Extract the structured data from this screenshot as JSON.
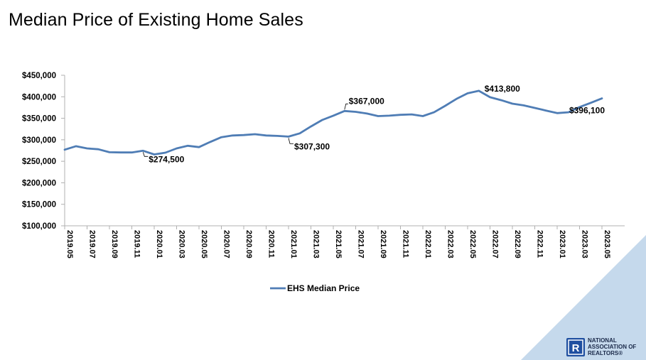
{
  "page": {
    "title": "Median Price of Existing Home Sales"
  },
  "colors": {
    "series_line": "#4f7db5",
    "corner_triangle": "#c5d9ec",
    "axis": "#b0b0b0",
    "logo_blue": "#1f4fa0"
  },
  "logo": {
    "icon": "realtor-r-icon",
    "lines": [
      "NATIONAL",
      "ASSOCIATION OF",
      "REALTORS®"
    ]
  },
  "chart_data": {
    "type": "line",
    "title": "Median Price of Existing Home Sales",
    "xlabel": "",
    "ylabel": "",
    "ylim": [
      100000,
      450000
    ],
    "yticks": [
      100000,
      150000,
      200000,
      250000,
      300000,
      350000,
      400000,
      450000
    ],
    "ytick_labels": [
      "$100,000",
      "$150,000",
      "$200,000",
      "$250,000",
      "$300,000",
      "$350,000",
      "$400,000",
      "$450,000"
    ],
    "grid": false,
    "legend": "bottom",
    "x": [
      "2019.05",
      "2019.06",
      "2019.07",
      "2019.08",
      "2019.09",
      "2019.10",
      "2019.11",
      "2019.12",
      "2020.01",
      "2020.02",
      "2020.03",
      "2020.04",
      "2020.05",
      "2020.06",
      "2020.07",
      "2020.08",
      "2020.09",
      "2020.10",
      "2020.11",
      "2020.12",
      "2021.01",
      "2021.02",
      "2021.03",
      "2021.04",
      "2021.05",
      "2021.06",
      "2021.07",
      "2021.08",
      "2021.09",
      "2021.10",
      "2021.11",
      "2021.12",
      "2022.01",
      "2022.02",
      "2022.03",
      "2022.04",
      "2022.05",
      "2022.06",
      "2022.07",
      "2022.08",
      "2022.09",
      "2022.10",
      "2022.11",
      "2022.12",
      "2023.01",
      "2023.02",
      "2023.03",
      "2023.04",
      "2023.05"
    ],
    "xtick_labels": [
      "2019.05",
      "2019.07",
      "2019.09",
      "2019.11",
      "2020.01",
      "2020.03",
      "2020.05",
      "2020.07",
      "2020.09",
      "2020.11",
      "2021.01",
      "2021.03",
      "2021.05",
      "2021.07",
      "2021.09",
      "2021.11",
      "2022.01",
      "2022.03",
      "2022.05",
      "2022.07",
      "2022.09",
      "2022.11",
      "2023.01",
      "2023.03",
      "2023.05"
    ],
    "series": [
      {
        "name": "EHS Median Price",
        "values": [
          277000,
          285000,
          280000,
          278000,
          271000,
          270500,
          270500,
          274500,
          266000,
          270000,
          280000,
          286000,
          283000,
          295000,
          306000,
          310000,
          311000,
          313000,
          310000,
          309000,
          307300,
          315000,
          331000,
          346000,
          356000,
          367000,
          365000,
          361000,
          355000,
          356000,
          358000,
          359000,
          355000,
          364000,
          379000,
          395000,
          408000,
          413800,
          399000,
          392000,
          384000,
          380000,
          374000,
          368000,
          362000,
          364000,
          376000,
          386000,
          396100
        ]
      }
    ],
    "annotations": [
      {
        "label": "$274,500",
        "x": "2019.12",
        "value": 274500
      },
      {
        "label": "$307,300",
        "x": "2021.01",
        "value": 307300
      },
      {
        "label": "$367,000",
        "x": "2021.06",
        "value": 367000
      },
      {
        "label": "$413,800",
        "x": "2022.06",
        "value": 413800
      },
      {
        "label": "$396,100",
        "x": "2023.05",
        "value": 396100
      }
    ]
  }
}
